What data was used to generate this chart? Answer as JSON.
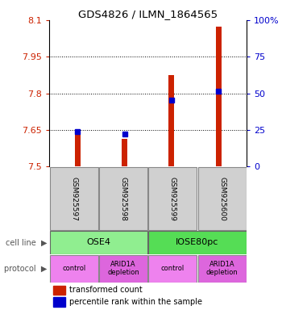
{
  "title": "GDS4826 / ILMN_1864565",
  "samples": [
    "GSM925597",
    "GSM925598",
    "GSM925599",
    "GSM925600"
  ],
  "red_values": [
    7.635,
    7.615,
    7.875,
    8.075
  ],
  "blue_values": [
    7.643,
    7.635,
    7.773,
    7.81
  ],
  "ylim_left": [
    7.5,
    8.1
  ],
  "ylim_right": [
    0,
    100
  ],
  "yticks_left": [
    7.5,
    7.65,
    7.8,
    7.95,
    8.1
  ],
  "yticks_right": [
    0,
    25,
    50,
    75,
    100
  ],
  "ytick_labels_left": [
    "7.5",
    "7.65",
    "7.8",
    "7.95",
    "8.1"
  ],
  "ytick_labels_right": [
    "0",
    "25",
    "50",
    "75",
    "100%"
  ],
  "grid_lines": [
    7.65,
    7.8,
    7.95
  ],
  "cell_line_spans": [
    [
      0,
      2,
      "OSE4",
      "#90ee90"
    ],
    [
      2,
      4,
      "IOSE80pc",
      "#55dd55"
    ]
  ],
  "protocol_labels": [
    "control",
    "ARID1A\ndepletion",
    "control",
    "ARID1A\ndepletion"
  ],
  "protocol_colors": [
    "#ee82ee",
    "#dd66dd",
    "#ee82ee",
    "#dd66dd"
  ],
  "legend_red": "transformed count",
  "legend_blue": "percentile rank within the sample",
  "left_axis_color": "#cc2200",
  "right_axis_color": "#0000cc",
  "bar_bottom": 7.5,
  "bar_width": 0.12,
  "blue_marker_size": 4,
  "sample_box_color": "#d0d0d0",
  "left_label_color": "#555555"
}
